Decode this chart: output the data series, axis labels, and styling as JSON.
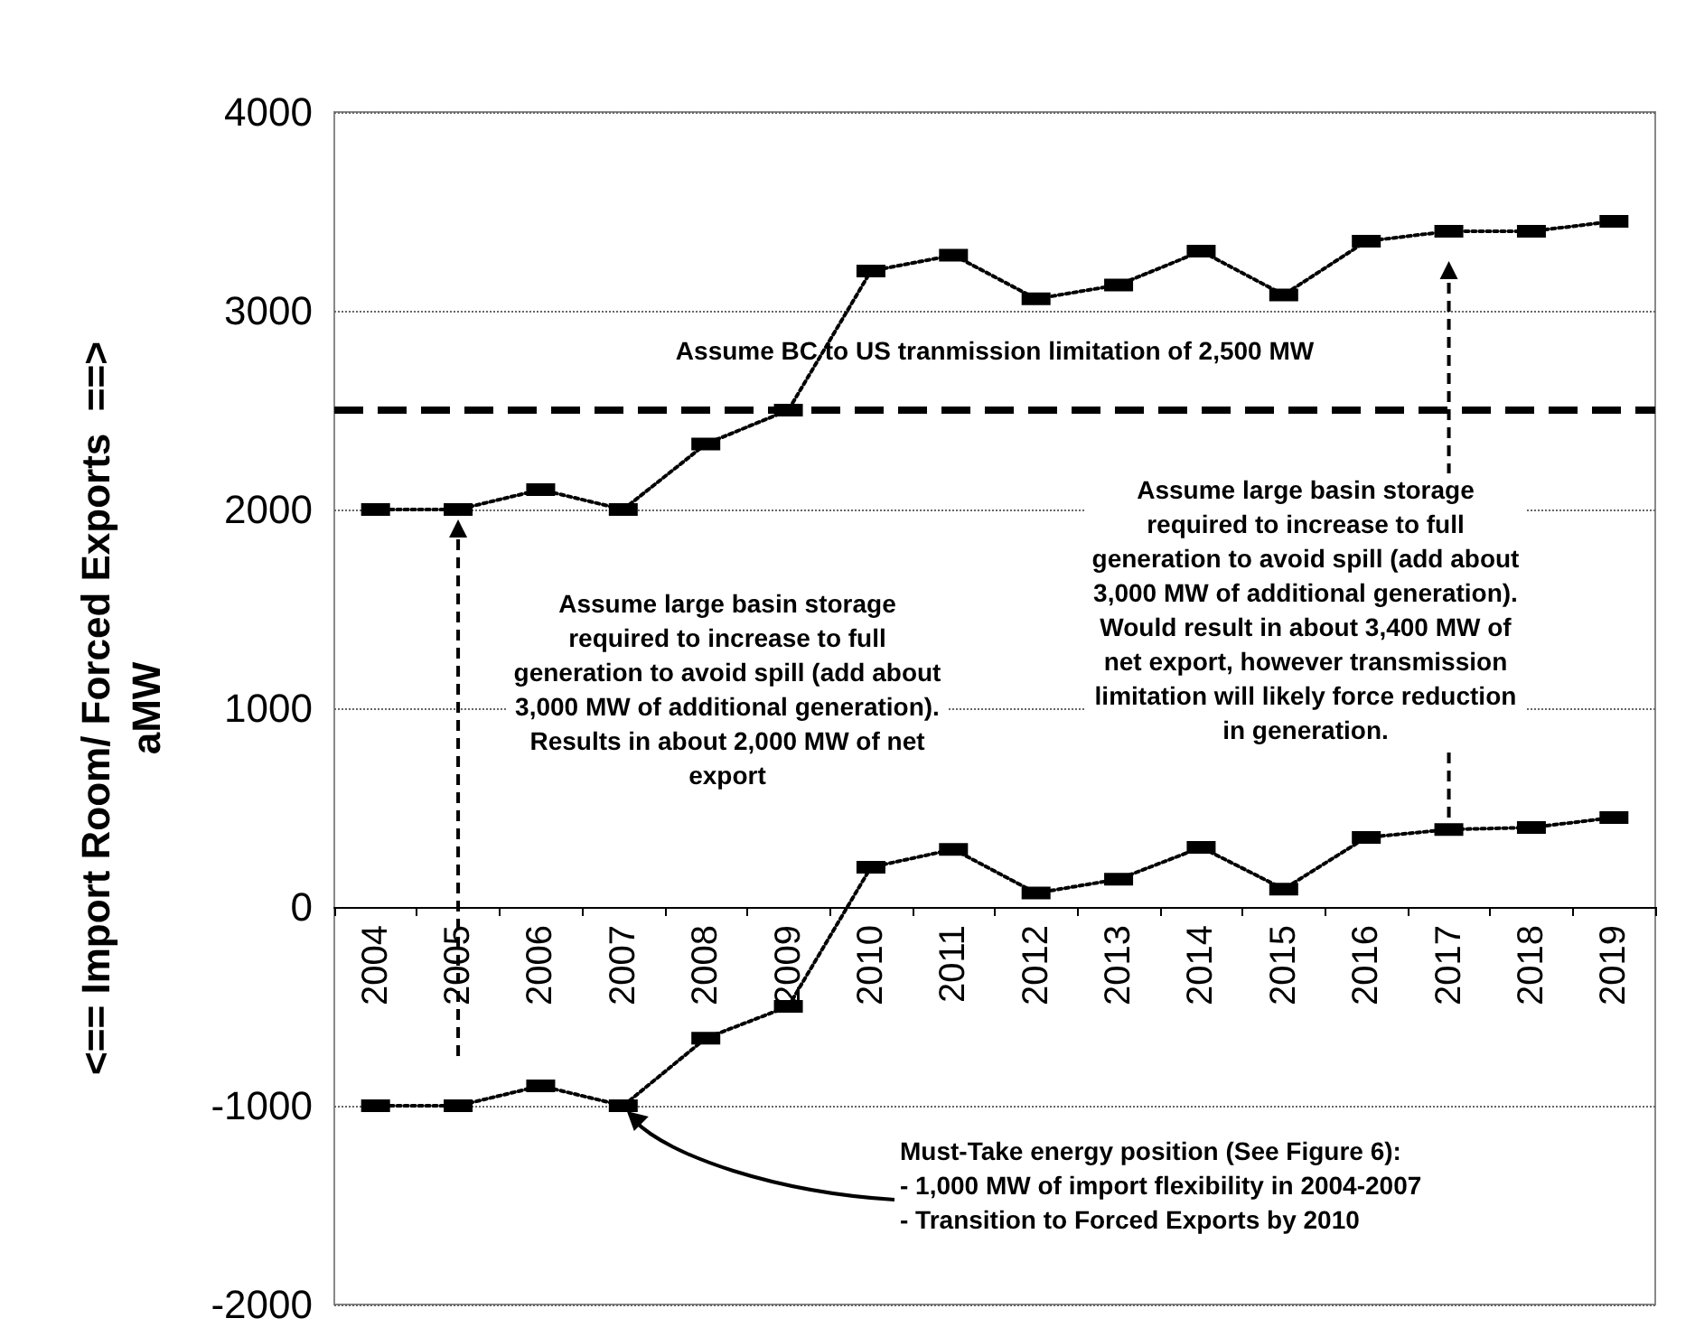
{
  "chart_data": {
    "type": "line",
    "ylabel": "<== Import Room/ Forced Exports  ==>\naMW",
    "categories": [
      "2004",
      "2005",
      "2006",
      "2007",
      "2008",
      "2009",
      "2010",
      "2011",
      "2012",
      "2013",
      "2014",
      "2015",
      "2016",
      "2017",
      "2018",
      "2019"
    ],
    "series": [
      {
        "color": "#000000",
        "values": [
          2000,
          2000,
          2100,
          2000,
          2330,
          2500,
          3200,
          3280,
          3060,
          3130,
          3300,
          3080,
          3350,
          3400,
          3400,
          3450
        ]
      },
      {
        "color": "#000000",
        "values": [
          -1000,
          -1000,
          -900,
          -1000,
          -660,
          -500,
          200,
          290,
          70,
          140,
          300,
          90,
          350,
          390,
          400,
          450
        ]
      }
    ],
    "ylim": [
      -2000,
      4000
    ],
    "yticks": [
      -2000,
      -1000,
      0,
      1000,
      2000,
      3000,
      4000
    ],
    "grid": "y",
    "marker": "square",
    "line_style": "dotted",
    "ref_lines": [
      {
        "axis": "y",
        "value": 2500,
        "label": "Assume BC to US tranmission limitation of 2,500 MW",
        "color": "#000000",
        "line_style": "dashed"
      }
    ],
    "annotations": [
      "Assume large basin storage required to increase to full generation to avoid spill (add about 3,000 MW of additional generation).  Results in about 2,000 MW of net export",
      "Assume large basin storage required to increase to full generation to avoid spill (add about 3,000 MW of additional generation).  Would result in about 3,400 MW of net export, however transmission limitation will likely force reduction in generation.",
      "Must-Take energy position (See Figure 6):\n -  1,000 MW of import flexibility in 2004-2007\n -  Transition to Forced Exports by 2010"
    ]
  }
}
